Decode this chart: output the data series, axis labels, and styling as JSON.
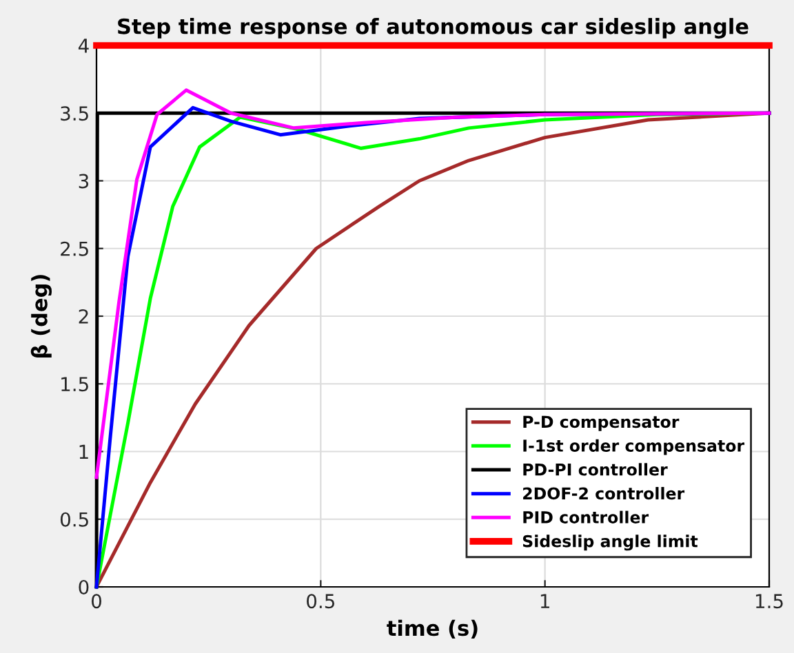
{
  "chart_data": {
    "type": "line",
    "title": "Step time response of autonomous car sideslip angle",
    "xlabel": "time (s)",
    "ylabel": "β (deg)",
    "xlim": [
      0,
      1.5
    ],
    "ylim": [
      0,
      4
    ],
    "xticks": [
      0,
      0.5,
      1,
      1.5
    ],
    "yticks": [
      0,
      0.5,
      1,
      1.5,
      2,
      2.5,
      3,
      3.5,
      4
    ],
    "grid": true,
    "legend": "bottom right",
    "line_style": "solid",
    "marker": "none",
    "series": [
      {
        "name": "P-D compensator",
        "color": "#a52a2a",
        "x": [
          0,
          0.12,
          0.22,
          0.34,
          0.49,
          0.63,
          0.72,
          0.83,
          1.0,
          1.23,
          1.5
        ],
        "values": [
          0,
          0.77,
          1.35,
          1.93,
          2.5,
          2.81,
          3.0,
          3.15,
          3.32,
          3.45,
          3.5
        ]
      },
      {
        "name": "I-1st order compensator",
        "color": "#00ff00",
        "x": [
          0,
          0.07,
          0.12,
          0.17,
          0.23,
          0.32,
          0.45,
          0.59,
          0.72,
          0.83,
          1.0,
          1.25,
          1.5
        ],
        "values": [
          0,
          1.21,
          2.13,
          2.81,
          3.25,
          3.47,
          3.38,
          3.24,
          3.31,
          3.39,
          3.45,
          3.49,
          3.5
        ]
      },
      {
        "name": "PD-PI controller",
        "color": "#000000",
        "x": [
          0,
          0.002,
          0.01,
          1.5
        ],
        "values": [
          0,
          3.5,
          3.5,
          3.5
        ]
      },
      {
        "name": "2DOF-2 controller",
        "color": "#0000ff",
        "x": [
          0,
          0.03,
          0.07,
          0.12,
          0.215,
          0.3,
          0.41,
          0.55,
          0.72,
          1.0,
          1.5
        ],
        "values": [
          0,
          1.08,
          2.44,
          3.25,
          3.54,
          3.44,
          3.34,
          3.4,
          3.46,
          3.49,
          3.5
        ]
      },
      {
        "name": "PID controller",
        "color": "#ff00ff",
        "x": [
          0,
          0.05,
          0.09,
          0.135,
          0.2,
          0.3,
          0.44,
          0.6,
          0.8,
          1.0,
          1.5
        ],
        "values": [
          0.81,
          2.1,
          3.01,
          3.49,
          3.67,
          3.5,
          3.39,
          3.43,
          3.47,
          3.49,
          3.5
        ]
      },
      {
        "name": "Sideslip angle limit",
        "color": "#ff0000",
        "x": [
          0,
          1.5
        ],
        "values": [
          4,
          4
        ]
      }
    ]
  }
}
